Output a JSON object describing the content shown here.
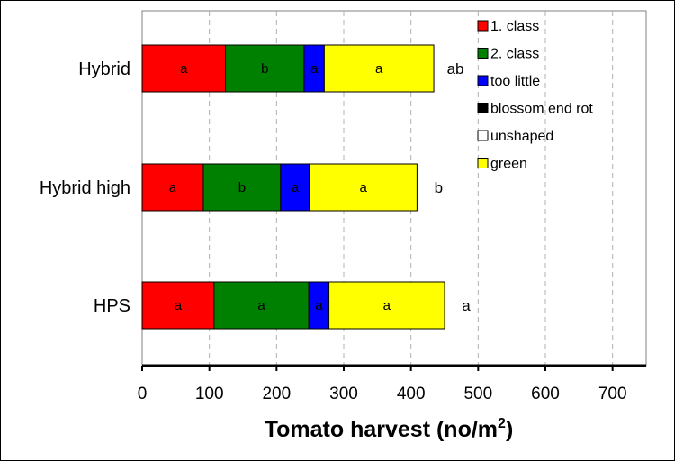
{
  "chart_data": {
    "type": "bar",
    "orientation": "horizontal",
    "stacked": true,
    "categories": [
      "Hybrid",
      "Hybrid high",
      "HPS"
    ],
    "series": [
      {
        "name": "1. class",
        "color": "#ff0000",
        "values": [
          124,
          91,
          107
        ],
        "labels": [
          "a",
          "a",
          "a"
        ]
      },
      {
        "name": "2. class",
        "color": "#008000",
        "values": [
          117,
          115,
          141
        ],
        "labels": [
          "b",
          "b",
          "a"
        ]
      },
      {
        "name": "too little",
        "color": "#0000ff",
        "values": [
          30,
          43,
          30
        ],
        "labels": [
          "a",
          "a",
          "a"
        ]
      },
      {
        "name": "blossom end rot",
        "color": "#000000",
        "values": [
          0,
          0,
          0
        ],
        "labels": [
          "",
          "",
          ""
        ]
      },
      {
        "name": "unshaped",
        "color": "#ffffff",
        "values": [
          0,
          0,
          0
        ],
        "labels": [
          "",
          "",
          ""
        ]
      },
      {
        "name": "green",
        "color": "#ffff00",
        "values": [
          163,
          160,
          172
        ],
        "labels": [
          "a",
          "a",
          "a"
        ]
      }
    ],
    "totals_labels": [
      "ab",
      "b",
      "a"
    ],
    "xlabel_main": "Tomato harvest (no/m",
    "xlabel_sup": "2",
    "xlabel_end": ")",
    "xlim": [
      0,
      750
    ],
    "xticks": [
      0,
      100,
      200,
      300,
      400,
      500,
      600,
      700
    ],
    "grid": "vertical-dashed",
    "legend_position": "top-right"
  }
}
